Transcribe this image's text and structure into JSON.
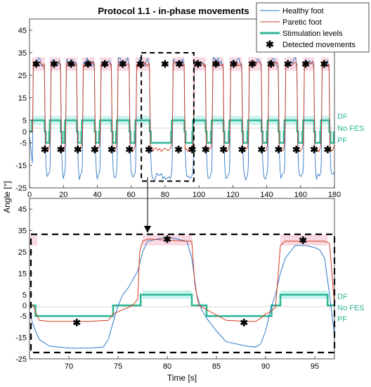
{
  "figure": {
    "title": "Protocol 1.1 - in-phase movements",
    "ylabel": "Angle [°]",
    "xlabel": "Time [s]",
    "legend": [
      {
        "label": "Healthy foot",
        "color": "#2f78c8",
        "style": "line"
      },
      {
        "label": "Paretic foot",
        "color": "#d23c1e",
        "style": "line"
      },
      {
        "label": "Stimulation levels",
        "color": "#2cb796",
        "style": "thick"
      },
      {
        "label": "Detected movements",
        "color": "#000000",
        "style": "star"
      }
    ],
    "stim_labels": [
      "DF",
      "No FES",
      "PF"
    ],
    "colors": {
      "healthy": "#2f78c8",
      "paretic": "#d23c1e",
      "stim": "#2cb796",
      "stim_text": "#2cb796",
      "shade_pink": "#f7c9d5",
      "shade_cyan": "#bff0ea",
      "zero_line": "#aaaaaa"
    }
  },
  "chart_data": [
    {
      "type": "line",
      "xlim": [
        0,
        180
      ],
      "ylim": [
        -25,
        50
      ],
      "xticks": [
        0,
        20,
        40,
        60,
        80,
        100,
        120,
        140,
        160,
        180
      ],
      "yticks": [
        -25,
        -15,
        -5,
        0,
        5,
        15,
        25,
        35,
        45
      ],
      "ytick_labels": [
        "-25",
        "-15",
        "-5",
        "0",
        "5",
        "15",
        "25",
        "35",
        "45"
      ],
      "grid": false,
      "legend_position": "top-right",
      "upper_level_paretic": 30,
      "lower_level_paretic": -8,
      "upper_level_healthy": 31,
      "lower_level_healthy": -20,
      "stim_levels": {
        "DF": 5,
        "none": 0,
        "PF": -5
      },
      "cycles": [
        {
          "flex_start": 1.5,
          "flex_end": 9,
          "ext_start": 9,
          "ext_end": 12
        },
        {
          "flex_start": 12,
          "flex_end": 18.5,
          "ext_start": 18.5,
          "ext_end": 21
        },
        {
          "flex_start": 21,
          "flex_end": 28,
          "ext_start": 28,
          "ext_end": 31
        },
        {
          "flex_start": 31,
          "flex_end": 38.5,
          "ext_start": 38.5,
          "ext_end": 41.5
        },
        {
          "flex_start": 41.5,
          "flex_end": 48.5,
          "ext_start": 48.5,
          "ext_end": 51.5
        },
        {
          "flex_start": 51.5,
          "flex_end": 59,
          "ext_start": 59,
          "ext_end": 62.5
        },
        {
          "flex_start": 62.5,
          "flex_end": 71,
          "ext_start": 71,
          "ext_end": 84
        },
        {
          "flex_start": 84,
          "flex_end": 91.5,
          "ext_start": 91.5,
          "ext_end": 96.5
        },
        {
          "flex_start": 96.5,
          "flex_end": 104,
          "ext_start": 104,
          "ext_end": 107.5
        },
        {
          "flex_start": 107.5,
          "flex_end": 114.5,
          "ext_start": 114.5,
          "ext_end": 118
        },
        {
          "flex_start": 118,
          "flex_end": 125.5,
          "ext_start": 125.5,
          "ext_end": 129
        },
        {
          "flex_start": 129,
          "flex_end": 137,
          "ext_start": 137,
          "ext_end": 140.5
        },
        {
          "flex_start": 140.5,
          "flex_end": 147,
          "ext_start": 147,
          "ext_end": 150.5
        },
        {
          "flex_start": 150.5,
          "flex_end": 158,
          "ext_start": 158,
          "ext_end": 161.5
        },
        {
          "flex_start": 161.5,
          "flex_end": 168,
          "ext_start": 168,
          "ext_end": 172
        },
        {
          "flex_start": 172,
          "flex_end": 177,
          "ext_start": 177,
          "ext_end": 180
        }
      ],
      "detected_up": [
        4,
        14.5,
        24.5,
        34.5,
        44.5,
        55,
        65.5,
        80,
        88.5,
        99.5,
        110,
        120.5,
        131.5,
        142.5,
        152.5,
        163,
        174
      ],
      "detected_down": [
        9,
        18.5,
        28.5,
        38.5,
        48.5,
        59,
        70.5,
        88,
        96,
        104,
        114.5,
        125.5,
        137,
        147,
        157.5,
        168,
        176
      ],
      "zoom_box": {
        "x": [
          66,
          97
        ],
        "y": [
          -22,
          35
        ]
      }
    },
    {
      "type": "line",
      "xlim": [
        66,
        97
      ],
      "ylim": [
        -25,
        50
      ],
      "xticks": [
        70,
        75,
        80,
        85,
        90,
        95
      ],
      "yticks": [
        -25,
        -15,
        -5,
        0,
        5,
        15,
        25,
        35,
        45
      ],
      "ytick_labels": [
        "-25",
        "-15",
        "-5",
        "0",
        "5",
        "15",
        "25",
        "35",
        "45"
      ],
      "grid": false,
      "stim_levels": {
        "DF": 5,
        "none": 0,
        "PF": -5
      },
      "paretic": {
        "x": [
          66,
          66.4,
          66.6,
          67,
          68,
          70,
          72,
          74,
          74.5,
          75,
          75.5,
          76,
          76.5,
          77,
          77.2,
          77.5,
          78,
          80,
          82,
          82.5,
          82.8,
          83.2,
          84,
          86,
          88,
          89,
          89.5,
          90,
          90.5,
          91,
          91.2,
          91.5,
          92,
          94,
          96,
          96.5,
          97
        ],
        "y": [
          0,
          0,
          -3,
          -7,
          -7.5,
          -7.5,
          -7.5,
          -7,
          -4,
          -3,
          -2,
          -1,
          0,
          3,
          25,
          30,
          31,
          30.5,
          30,
          30,
          10,
          0,
          -2,
          -7,
          -7.5,
          -7.5,
          -6,
          -4,
          -3,
          -1,
          10,
          28,
          30,
          30,
          30,
          29,
          0
        ]
      },
      "healthy": {
        "x": [
          66,
          66.3,
          66.6,
          67,
          68,
          70,
          72,
          73.5,
          74,
          74.5,
          75,
          75.5,
          76,
          76.5,
          77,
          77.5,
          78,
          79,
          80,
          81,
          82,
          82.5,
          83,
          83.5,
          84,
          85,
          86,
          88,
          89,
          89.5,
          90,
          90.5,
          91,
          91.5,
          92,
          93,
          94,
          95,
          95.5,
          96,
          96.5,
          97
        ],
        "y": [
          -3,
          -8,
          -12,
          -16,
          -19,
          -20,
          -20,
          -19.5,
          -16,
          -8,
          0,
          5,
          8,
          12,
          16,
          25,
          30,
          31,
          32,
          31,
          30,
          22,
          5,
          -2,
          -6,
          -12,
          -17,
          -19,
          -19.5,
          -18,
          -12,
          -2,
          5,
          15,
          22,
          28,
          28,
          27,
          26,
          22,
          5,
          -14
        ]
      },
      "stim": {
        "x": [
          66,
          66.6,
          66.6,
          74.5,
          74.5,
          77.3,
          77.3,
          82.5,
          82.5,
          84,
          84,
          90.6,
          90.6,
          91.5,
          91.5,
          96.3,
          96.3,
          97
        ],
        "y": [
          0,
          0,
          -5,
          -5,
          0,
          0,
          5,
          5,
          0,
          0,
          -5,
          -5,
          0,
          0,
          5,
          5,
          0,
          0
        ]
      },
      "detected": [
        {
          "x": 70.8,
          "y": -8
        },
        {
          "x": 80,
          "y": 31
        },
        {
          "x": 87.8,
          "y": -8
        },
        {
          "x": 93.8,
          "y": 30.5
        }
      ],
      "shade_pink": [
        [
          66,
          66.8
        ],
        [
          77.5,
          82.5
        ],
        [
          91.5,
          96.3
        ]
      ],
      "shade_cyan": [
        [
          77.5,
          82.5
        ],
        [
          91.5,
          96.3
        ]
      ]
    }
  ]
}
